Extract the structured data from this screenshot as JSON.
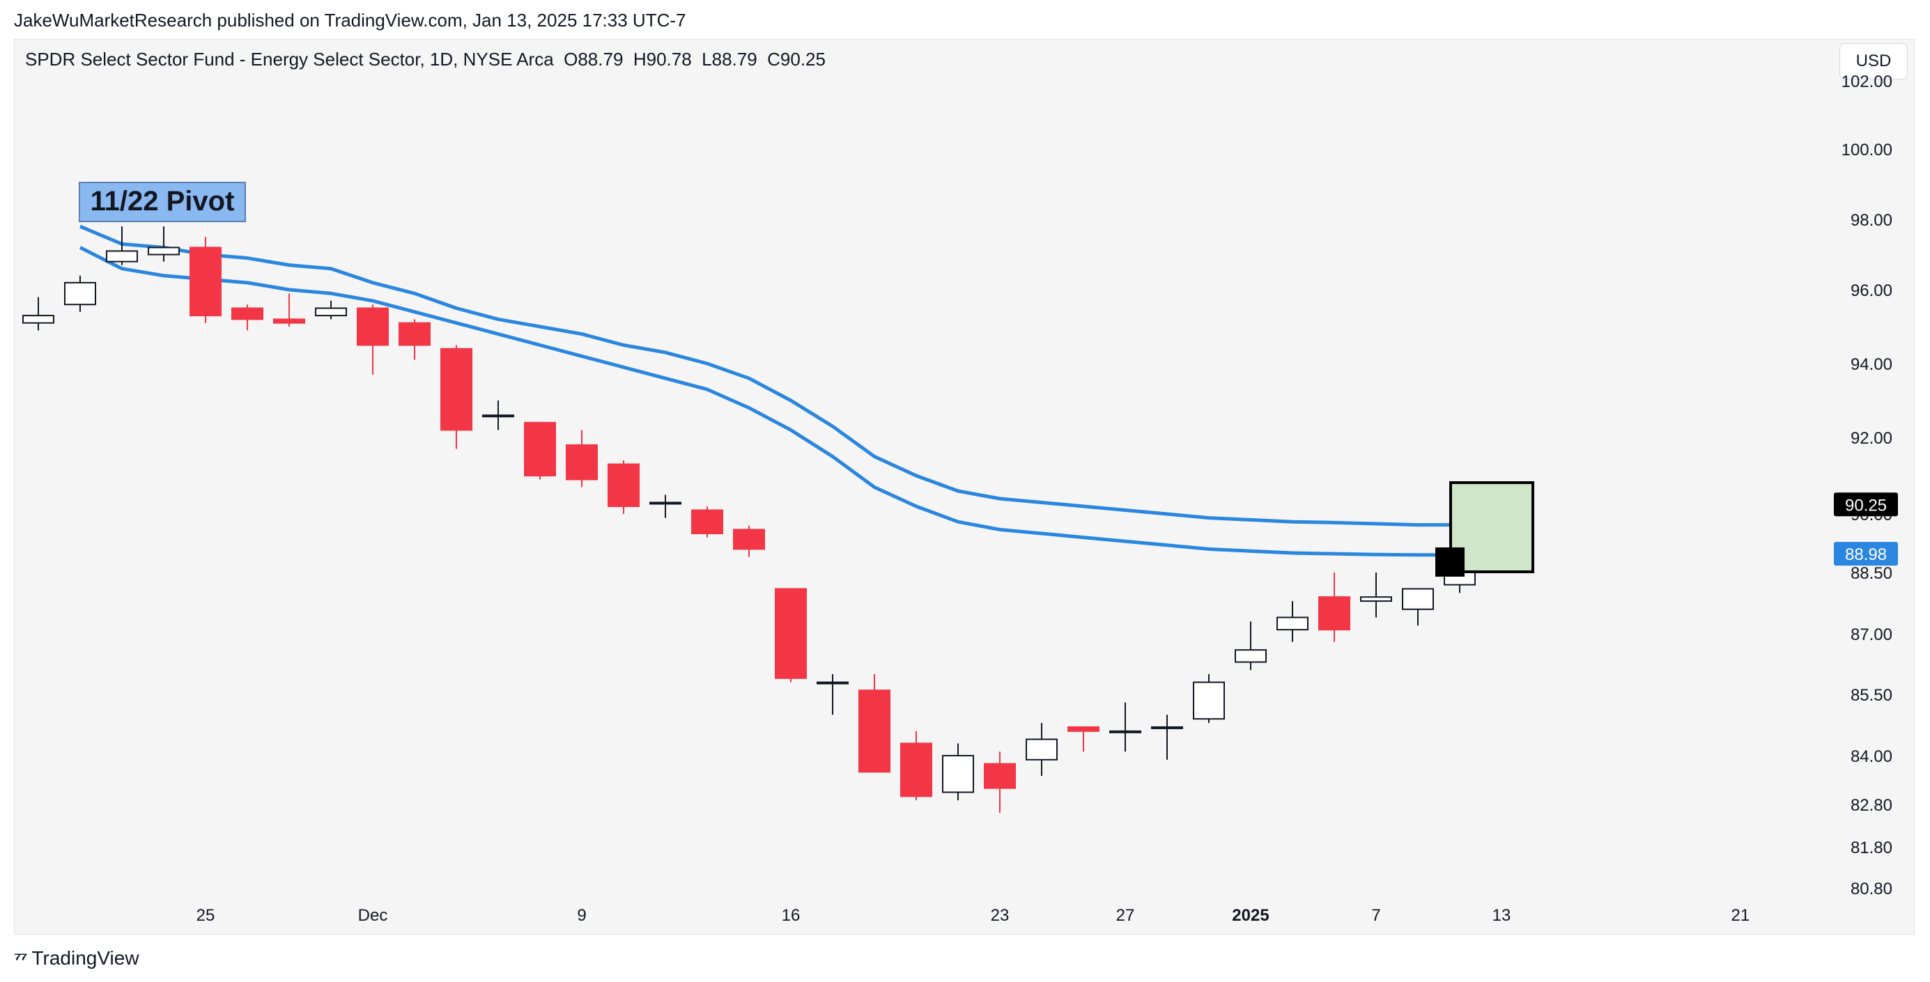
{
  "attribution": "JakeWuMarketResearch published on TradingView.com, Jan 13, 2025 17:33 UTC-7",
  "currency": "USD",
  "brand": "TradingView",
  "symbol": {
    "name": "SPDR Select Sector Fund - Energy Select Sector, 1D, NYSE Arca",
    "ohlc": "O88.79  H90.78  L88.79  C90.25"
  },
  "colors": {
    "up": "#ffffff",
    "down": "#f23645",
    "ema": "#2a86de",
    "box": "#cfe7c8"
  },
  "chart_data": {
    "type": "candlestick",
    "title": "SPDR Select Sector Fund - Energy Select Sector, 1D, NYSE Arca",
    "y_axis": {
      "ticks": [
        "80.80",
        "81.80",
        "82.80",
        "84.00",
        "85.50",
        "87.00",
        "88.50",
        "90.00",
        "92.00",
        "94.00",
        "96.00",
        "98.00",
        "100.00",
        "102.00"
      ]
    },
    "x_axis": {
      "tick_labels": [
        {
          "label": "25",
          "at": "2024-11-25"
        },
        {
          "label": "Dec",
          "at": "2024-12-02"
        },
        {
          "label": "9",
          "at": "2024-12-09"
        },
        {
          "label": "16",
          "at": "2024-12-16"
        },
        {
          "label": "23",
          "at": "2024-12-23"
        },
        {
          "label": "27",
          "at": "2024-12-27"
        },
        {
          "label": "2025",
          "at": "2025-01-02"
        },
        {
          "label": "7",
          "at": "2025-01-07"
        },
        {
          "label": "13",
          "at": "2025-01-13"
        },
        {
          "label": "21",
          "at": "2025-01-21"
        }
      ]
    },
    "candles": [
      {
        "date": "2024-11-19",
        "o": 95.1,
        "h": 95.8,
        "l": 94.9,
        "c": 95.3
      },
      {
        "date": "2024-11-20",
        "o": 95.6,
        "h": 96.4,
        "l": 95.4,
        "c": 96.2
      },
      {
        "date": "2024-11-21",
        "o": 96.8,
        "h": 97.8,
        "l": 96.7,
        "c": 97.1
      },
      {
        "date": "2024-11-22",
        "o": 97.0,
        "h": 97.8,
        "l": 96.8,
        "c": 97.2
      },
      {
        "date": "2024-11-25",
        "o": 97.2,
        "h": 97.5,
        "l": 95.1,
        "c": 95.3
      },
      {
        "date": "2024-11-26",
        "o": 95.5,
        "h": 95.6,
        "l": 94.9,
        "c": 95.2
      },
      {
        "date": "2024-11-27",
        "o": 95.2,
        "h": 95.9,
        "l": 95.0,
        "c": 95.1
      },
      {
        "date": "2024-11-29",
        "o": 95.3,
        "h": 95.7,
        "l": 95.2,
        "c": 95.5
      },
      {
        "date": "2024-12-02",
        "o": 95.5,
        "h": 95.6,
        "l": 93.7,
        "c": 94.5
      },
      {
        "date": "2024-12-03",
        "o": 95.1,
        "h": 95.2,
        "l": 94.1,
        "c": 94.5
      },
      {
        "date": "2024-12-04",
        "o": 94.4,
        "h": 94.5,
        "l": 91.7,
        "c": 92.2
      },
      {
        "date": "2024-12-05",
        "o": 92.6,
        "h": 93.0,
        "l": 92.2,
        "c": 92.6
      },
      {
        "date": "2024-12-06",
        "o": 92.4,
        "h": 92.4,
        "l": 90.9,
        "c": 91.0
      },
      {
        "date": "2024-12-09",
        "o": 91.8,
        "h": 92.2,
        "l": 90.7,
        "c": 90.9
      },
      {
        "date": "2024-12-10",
        "o": 91.3,
        "h": 91.4,
        "l": 90.0,
        "c": 90.2
      },
      {
        "date": "2024-12-11",
        "o": 90.3,
        "h": 90.5,
        "l": 89.9,
        "c": 90.3
      },
      {
        "date": "2024-12-12",
        "o": 90.1,
        "h": 90.2,
        "l": 89.4,
        "c": 89.5
      },
      {
        "date": "2024-12-13",
        "o": 89.6,
        "h": 89.7,
        "l": 88.9,
        "c": 89.1
      },
      {
        "date": "2024-12-16",
        "o": 88.1,
        "h": 88.1,
        "l": 85.8,
        "c": 85.9
      },
      {
        "date": "2024-12-17",
        "o": 85.8,
        "h": 86.0,
        "l": 85.0,
        "c": 85.8
      },
      {
        "date": "2024-12-18",
        "o": 85.6,
        "h": 86.0,
        "l": 83.6,
        "c": 83.6
      },
      {
        "date": "2024-12-19",
        "o": 84.3,
        "h": 84.6,
        "l": 82.9,
        "c": 83.0
      },
      {
        "date": "2024-12-20",
        "o": 83.1,
        "h": 84.3,
        "l": 82.9,
        "c": 84.0
      },
      {
        "date": "2024-12-23",
        "o": 83.8,
        "h": 84.1,
        "l": 82.6,
        "c": 83.2
      },
      {
        "date": "2024-12-24",
        "o": 83.9,
        "h": 84.8,
        "l": 83.5,
        "c": 84.4
      },
      {
        "date": "2024-12-26",
        "o": 84.7,
        "h": 84.7,
        "l": 84.1,
        "c": 84.6
      },
      {
        "date": "2024-12-27",
        "o": 84.6,
        "h": 85.3,
        "l": 84.1,
        "c": 84.6
      },
      {
        "date": "2024-12-30",
        "o": 84.7,
        "h": 85.0,
        "l": 83.9,
        "c": 84.7
      },
      {
        "date": "2024-12-31",
        "o": 84.9,
        "h": 86.0,
        "l": 84.8,
        "c": 85.8
      },
      {
        "date": "2025-01-02",
        "o": 86.3,
        "h": 87.3,
        "l": 86.1,
        "c": 86.6
      },
      {
        "date": "2025-01-03",
        "o": 87.1,
        "h": 87.8,
        "l": 86.8,
        "c": 87.4
      },
      {
        "date": "2025-01-06",
        "o": 87.9,
        "h": 88.5,
        "l": 86.8,
        "c": 87.1
      },
      {
        "date": "2025-01-07",
        "o": 87.8,
        "h": 88.5,
        "l": 87.4,
        "c": 87.9
      },
      {
        "date": "2025-01-08",
        "o": 87.6,
        "h": 88.0,
        "l": 87.2,
        "c": 88.1
      },
      {
        "date": "2025-01-10",
        "o": 88.2,
        "h": 88.8,
        "l": 88.0,
        "c": 88.9
      },
      {
        "date": "2025-01-13",
        "o": 88.79,
        "h": 90.78,
        "l": 88.79,
        "c": 90.25
      }
    ],
    "series": [
      {
        "type": "line",
        "values": [
          96.2,
          97.8,
          97.3,
          97.2,
          97.0,
          96.9,
          96.7,
          96.6,
          96.2,
          95.9,
          95.5,
          95.2,
          95.0,
          94.8,
          94.5,
          94.3,
          94.0,
          93.6,
          93.0,
          92.3,
          91.5,
          91.0,
          90.6,
          90.4,
          90.3,
          90.2,
          90.1,
          90.0,
          89.9,
          89.85,
          89.8,
          89.78,
          89.75,
          89.72,
          89.72,
          89.75
        ]
      },
      {
        "type": "line",
        "values": [
          95.6,
          97.2,
          96.6,
          96.4,
          96.3,
          96.2,
          96.0,
          95.9,
          95.7,
          95.4,
          95.1,
          94.8,
          94.5,
          94.2,
          93.9,
          93.6,
          93.3,
          92.8,
          92.2,
          91.5,
          90.7,
          90.2,
          89.8,
          89.6,
          89.5,
          89.4,
          89.3,
          89.2,
          89.1,
          89.05,
          89.0,
          88.98,
          88.96,
          88.95,
          88.95,
          88.98
        ]
      }
    ],
    "price_labels": [
      "90.25",
      "88.98"
    ],
    "annotations": [
      {
        "text": "11/22 Pivot",
        "at": "2024-11-22"
      }
    ]
  }
}
